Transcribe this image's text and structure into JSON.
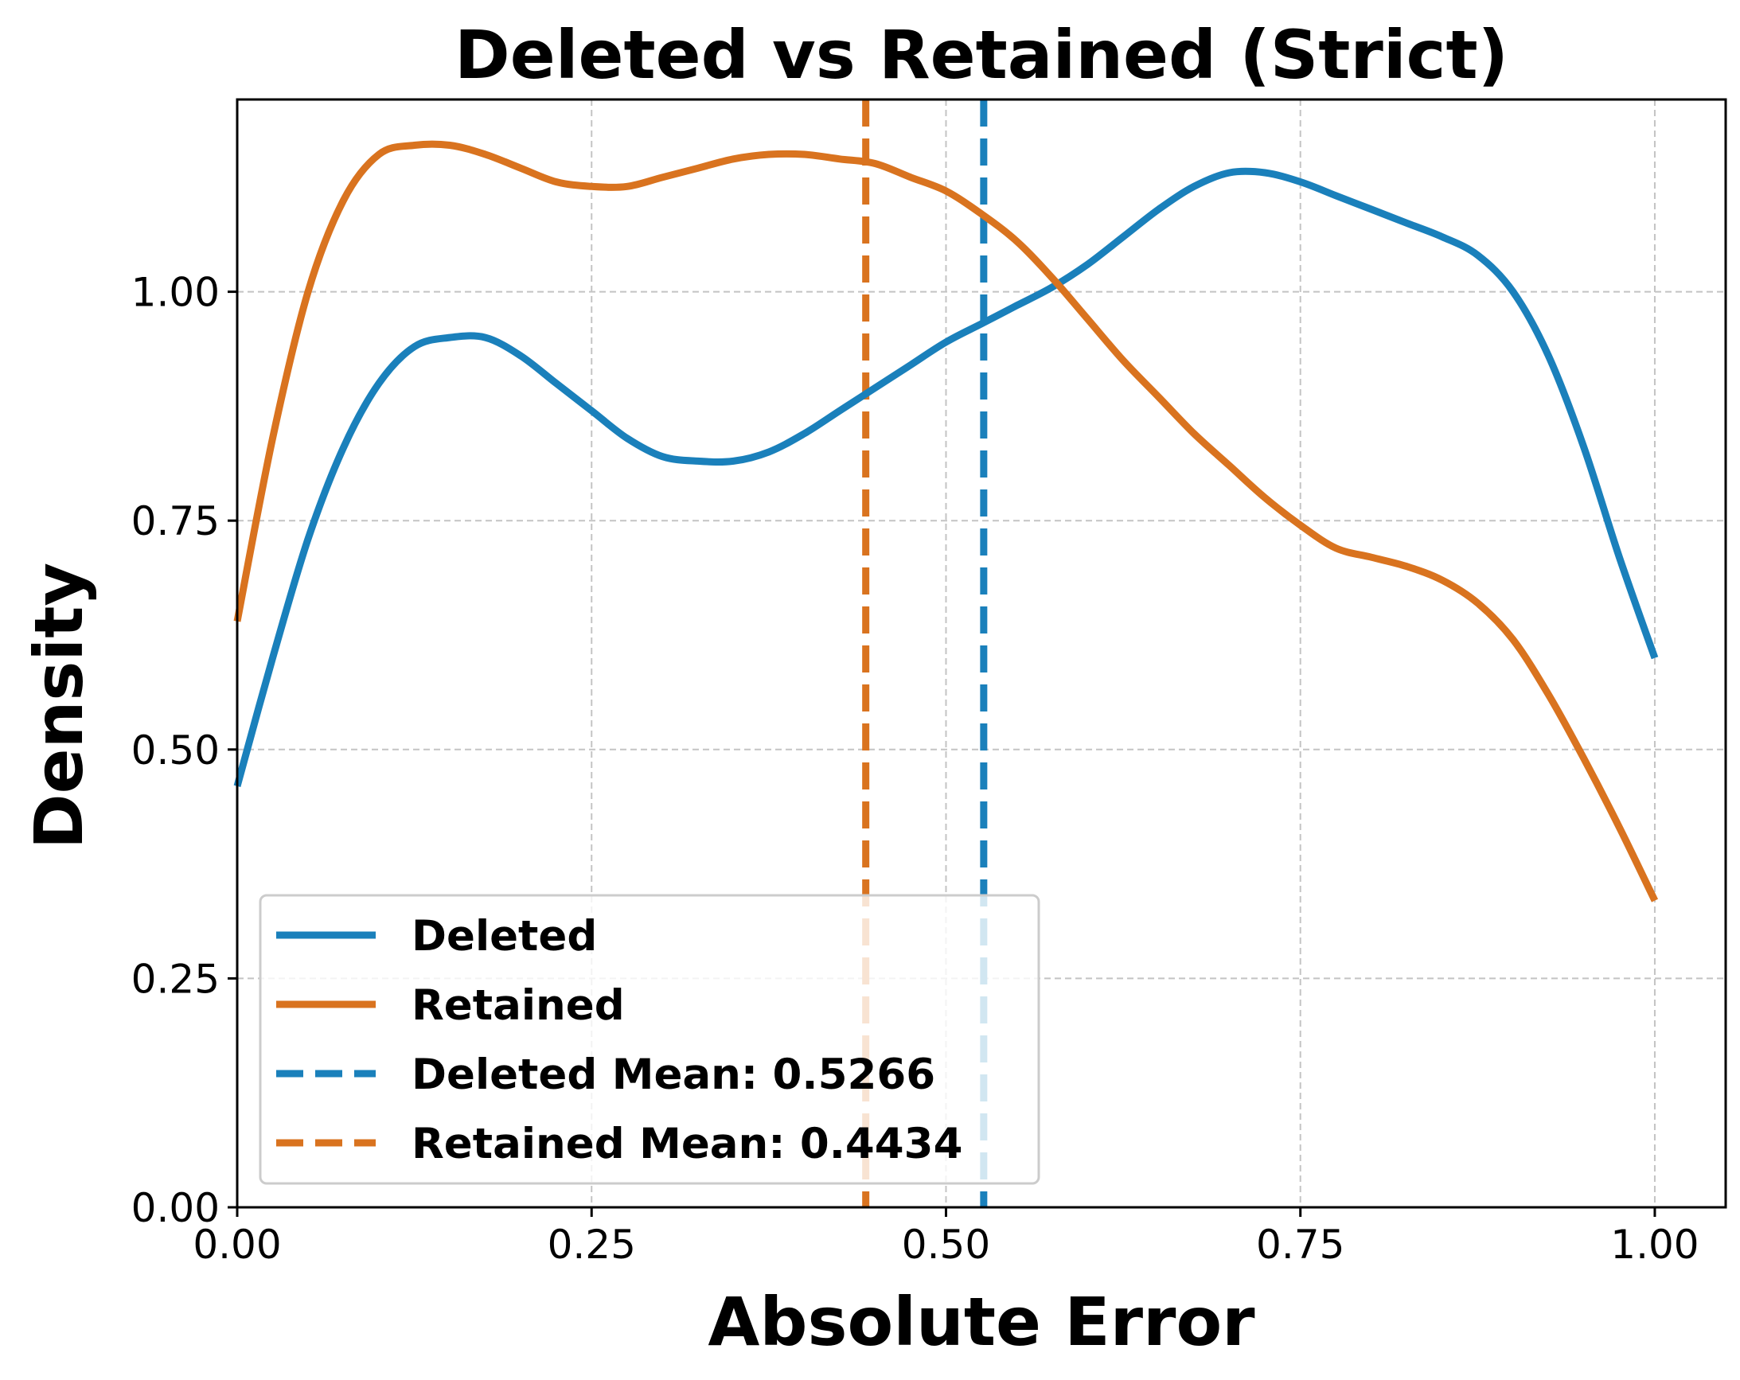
{
  "chart_data": {
    "type": "line",
    "title": "Deleted vs Retained (Strict)",
    "xlabel": "Absolute Error",
    "ylabel": "Density",
    "xlim": [
      0,
      1.05
    ],
    "ylim": [
      0,
      1.21
    ],
    "xticks": [
      0.0,
      0.25,
      0.5,
      0.75,
      1.0
    ],
    "xtick_labels": [
      "0.00",
      "0.25",
      "0.50",
      "0.75",
      "1.00"
    ],
    "yticks": [
      0.0,
      0.25,
      0.5,
      0.75,
      1.0
    ],
    "ytick_labels": [
      "0.00",
      "0.25",
      "0.50",
      "0.75",
      "1.00"
    ],
    "grid": true,
    "legend_position": "lower-left",
    "series": [
      {
        "name": "Deleted",
        "color": "#1a80bb",
        "style": "solid",
        "x": [
          0.0,
          0.025,
          0.05,
          0.075,
          0.1,
          0.125,
          0.15,
          0.175,
          0.2,
          0.225,
          0.25,
          0.275,
          0.3,
          0.325,
          0.35,
          0.375,
          0.4,
          0.425,
          0.45,
          0.475,
          0.5,
          0.525,
          0.55,
          0.575,
          0.6,
          0.625,
          0.65,
          0.675,
          0.7,
          0.725,
          0.75,
          0.775,
          0.8,
          0.825,
          0.85,
          0.875,
          0.9,
          0.925,
          0.95,
          0.975,
          1.0
        ],
        "y": [
          0.46,
          0.6,
          0.73,
          0.83,
          0.9,
          0.94,
          0.95,
          0.95,
          0.93,
          0.9,
          0.87,
          0.84,
          0.82,
          0.815,
          0.815,
          0.825,
          0.845,
          0.87,
          0.895,
          0.92,
          0.945,
          0.965,
          0.985,
          1.005,
          1.03,
          1.06,
          1.09,
          1.115,
          1.13,
          1.13,
          1.12,
          1.105,
          1.09,
          1.075,
          1.06,
          1.04,
          1.0,
          0.93,
          0.83,
          0.71,
          0.6
        ]
      },
      {
        "name": "Retained",
        "color": "#d9731f",
        "style": "solid",
        "x": [
          0.0,
          0.025,
          0.05,
          0.075,
          0.1,
          0.125,
          0.15,
          0.175,
          0.2,
          0.225,
          0.25,
          0.275,
          0.3,
          0.325,
          0.35,
          0.375,
          0.4,
          0.425,
          0.45,
          0.475,
          0.5,
          0.525,
          0.55,
          0.575,
          0.6,
          0.625,
          0.65,
          0.675,
          0.7,
          0.725,
          0.75,
          0.775,
          0.8,
          0.825,
          0.85,
          0.875,
          0.9,
          0.925,
          0.95,
          0.975,
          1.0
        ],
        "y": [
          0.64,
          0.84,
          1.0,
          1.1,
          1.15,
          1.16,
          1.16,
          1.15,
          1.135,
          1.12,
          1.115,
          1.115,
          1.125,
          1.135,
          1.145,
          1.15,
          1.15,
          1.145,
          1.14,
          1.125,
          1.11,
          1.085,
          1.055,
          1.015,
          0.97,
          0.925,
          0.885,
          0.845,
          0.81,
          0.775,
          0.745,
          0.72,
          0.71,
          0.7,
          0.685,
          0.66,
          0.62,
          0.56,
          0.49,
          0.415,
          0.335
        ]
      }
    ],
    "vlines": [
      {
        "name": "Deleted Mean: 0.5266",
        "x": 0.5266,
        "color": "#1a80bb",
        "style": "dashed"
      },
      {
        "name": "Retained Mean: 0.4434",
        "x": 0.4434,
        "color": "#d9731f",
        "style": "dashed"
      }
    ]
  }
}
